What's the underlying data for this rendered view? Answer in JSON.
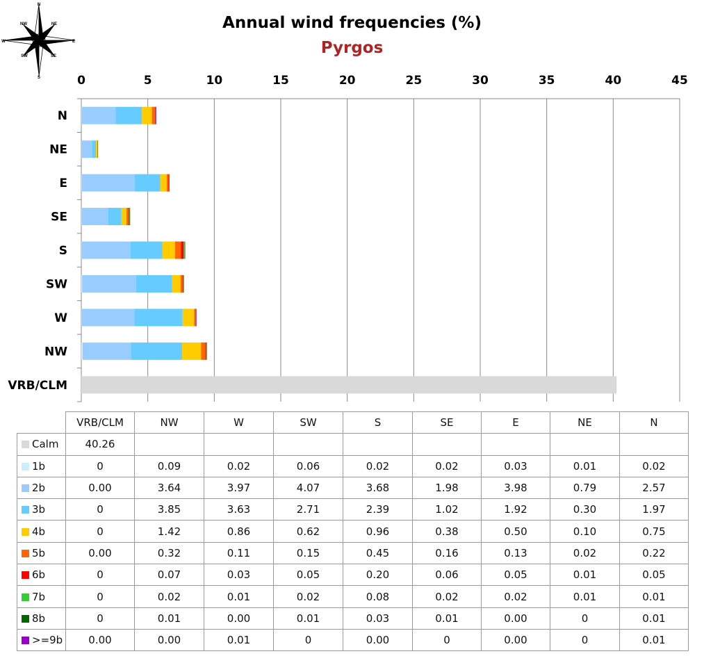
{
  "compass": {
    "labels": {
      "n": "N",
      "ne": "NE",
      "e": "E",
      "se": "SE",
      "s": "S",
      "sw": "SW",
      "w": "W",
      "nw": "NW"
    }
  },
  "chart_data": {
    "type": "bar",
    "orientation": "horizontal",
    "stacked": true,
    "title": "Annual wind frequencies (%)",
    "subtitle": "Pyrgos",
    "categories": [
      "N",
      "NE",
      "E",
      "SE",
      "S",
      "SW",
      "W",
      "NW",
      "VRB/CLM"
    ],
    "xlim": [
      0,
      45
    ],
    "xticks": [
      0,
      5,
      10,
      15,
      20,
      25,
      30,
      35,
      40,
      45
    ],
    "grid": true,
    "table_columns": [
      "VRB/CLM",
      "NW",
      "W",
      "SW",
      "S",
      "SE",
      "E",
      "NE",
      "N"
    ],
    "series": [
      {
        "name": "Calm",
        "color": "#d9d9d9",
        "values": {
          "VRB/CLM": "40.26"
        }
      },
      {
        "name": "1b",
        "color": "#cdeffc",
        "values": {
          "VRB/CLM": "0",
          "NW": "0.09",
          "W": "0.02",
          "SW": "0.06",
          "S": "0.02",
          "SE": "0.02",
          "E": "0.03",
          "NE": "0.01",
          "N": "0.02"
        }
      },
      {
        "name": "2b",
        "color": "#99ccff",
        "values": {
          "VRB/CLM": "0.00",
          "NW": "3.64",
          "W": "3.97",
          "SW": "4.07",
          "S": "3.68",
          "SE": "1.98",
          "E": "3.98",
          "NE": "0.79",
          "N": "2.57"
        }
      },
      {
        "name": "3b",
        "color": "#66ccff",
        "values": {
          "VRB/CLM": "0",
          "NW": "3.85",
          "W": "3.63",
          "SW": "2.71",
          "S": "2.39",
          "SE": "1.02",
          "E": "1.92",
          "NE": "0.30",
          "N": "1.97"
        }
      },
      {
        "name": "4b",
        "color": "#ffcc00",
        "values": {
          "VRB/CLM": "0",
          "NW": "1.42",
          "W": "0.86",
          "SW": "0.62",
          "S": "0.96",
          "SE": "0.38",
          "E": "0.50",
          "NE": "0.10",
          "N": "0.75"
        }
      },
      {
        "name": "5b",
        "color": "#ff6600",
        "values": {
          "VRB/CLM": "0.00",
          "NW": "0.32",
          "W": "0.11",
          "SW": "0.15",
          "S": "0.45",
          "SE": "0.16",
          "E": "0.13",
          "NE": "0.02",
          "N": "0.22"
        }
      },
      {
        "name": "6b",
        "color": "#ff0000",
        "values": {
          "VRB/CLM": "0",
          "NW": "0.07",
          "W": "0.03",
          "SW": "0.05",
          "S": "0.20",
          "SE": "0.06",
          "E": "0.05",
          "NE": "0.01",
          "N": "0.05"
        }
      },
      {
        "name": "7b",
        "color": "#33cc33",
        "values": {
          "VRB/CLM": "0",
          "NW": "0.02",
          "W": "0.01",
          "SW": "0.02",
          "S": "0.08",
          "SE": "0.02",
          "E": "0.02",
          "NE": "0.01",
          "N": "0.01"
        }
      },
      {
        "name": "8b",
        "color": "#006600",
        "values": {
          "VRB/CLM": "0",
          "NW": "0.01",
          "W": "0.00",
          "SW": "0.01",
          "S": "0.03",
          "SE": "0.01",
          "E": "0.00",
          "NE": "0",
          "N": "0.01"
        }
      },
      {
        "name": ">=9b",
        "color": "#9900cc",
        "values": {
          "VRB/CLM": "0.00",
          "NW": "0.00",
          "W": "0.01",
          "SW": "0",
          "S": "0.00",
          "SE": "0",
          "E": "0.00",
          "NE": "0",
          "N": "0.01"
        }
      }
    ]
  }
}
